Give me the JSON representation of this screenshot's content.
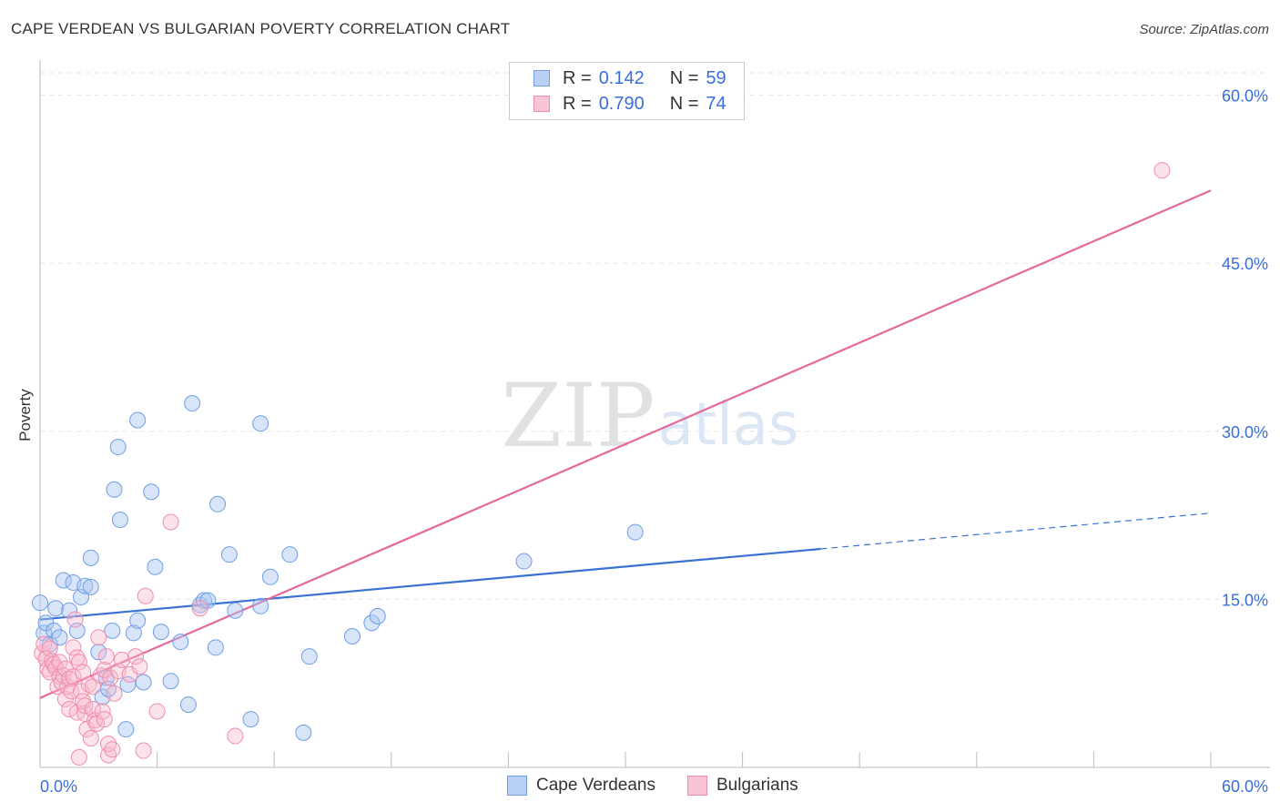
{
  "header": {
    "title": "CAPE VERDEAN VS BULGARIAN POVERTY CORRELATION CHART",
    "source": "Source: ZipAtlas.com"
  },
  "watermark": {
    "zip": "ZIP",
    "atlas": "atlas"
  },
  "legend": {
    "r_label": "R =",
    "n_label": "N =",
    "rows": [
      {
        "r": "0.142",
        "n": "59",
        "fill": "#b8d0f4",
        "stroke": "#6f9ee6"
      },
      {
        "r": "0.790",
        "n": "74",
        "fill": "#f9c4d5",
        "stroke": "#ee8eac"
      }
    ]
  },
  "bottom_legend": [
    {
      "label": "Cape Verdeans",
      "fill": "#b8d0f4",
      "stroke": "#6f9ee6"
    },
    {
      "label": "Bulgarians",
      "fill": "#f9c4d5",
      "stroke": "#ee8eac"
    }
  ],
  "chart_data": {
    "type": "scatter",
    "title": "CAPE VERDEAN VS BULGARIAN POVERTY CORRELATION CHART",
    "xlabel": "",
    "ylabel": "Poverty",
    "xlim": [
      0,
      60
    ],
    "ylim": [
      0,
      62
    ],
    "x_tick_labels": [
      "0.0%",
      "60.0%"
    ],
    "y_ticks": [
      15,
      30,
      45,
      60
    ],
    "y_tick_labels": [
      "15.0%",
      "30.0%",
      "45.0%",
      "60.0%"
    ],
    "grid": true,
    "colors": {
      "blue": "#3a72d4",
      "pink": "#e4689a",
      "tick_label": "#3a6fd8"
    },
    "series": [
      {
        "name": "Cape Verdeans",
        "r": 0.142,
        "n": 59,
        "trend": {
          "x0": 0,
          "y0": 13.2,
          "x1": 40,
          "y1": 19.5,
          "dash_x1": 60,
          "dash_y1": 22.7
        },
        "points": [
          [
            0,
            14.7
          ],
          [
            0.2,
            12.0
          ],
          [
            0.3,
            12.9
          ],
          [
            0.5,
            11.0
          ],
          [
            0.7,
            12.2
          ],
          [
            0.8,
            14.2
          ],
          [
            1.0,
            11.6
          ],
          [
            1.2,
            16.7
          ],
          [
            1.5,
            14.0
          ],
          [
            1.7,
            16.5
          ],
          [
            1.9,
            12.2
          ],
          [
            2.1,
            15.2
          ],
          [
            2.3,
            16.2
          ],
          [
            2.6,
            18.7
          ],
          [
            2.6,
            16.1
          ],
          [
            3.0,
            10.3
          ],
          [
            3.2,
            6.3
          ],
          [
            3.4,
            8.0
          ],
          [
            3.5,
            7.0
          ],
          [
            3.7,
            12.2
          ],
          [
            3.8,
            24.8
          ],
          [
            4.0,
            28.6
          ],
          [
            4.1,
            22.1
          ],
          [
            4.4,
            3.4
          ],
          [
            4.5,
            7.4
          ],
          [
            4.8,
            12.0
          ],
          [
            5.0,
            13.1
          ],
          [
            5.0,
            31.0
          ],
          [
            5.3,
            7.6
          ],
          [
            5.7,
            24.6
          ],
          [
            5.9,
            17.9
          ],
          [
            6.2,
            12.1
          ],
          [
            6.7,
            7.7
          ],
          [
            7.2,
            11.2
          ],
          [
            7.6,
            5.6
          ],
          [
            7.8,
            32.5
          ],
          [
            8.2,
            14.5
          ],
          [
            8.4,
            14.9
          ],
          [
            8.6,
            14.9
          ],
          [
            9.0,
            10.7
          ],
          [
            9.1,
            23.5
          ],
          [
            9.7,
            19.0
          ],
          [
            10.0,
            14.0
          ],
          [
            10.8,
            4.3
          ],
          [
            11.3,
            14.4
          ],
          [
            11.3,
            30.7
          ],
          [
            11.8,
            17.0
          ],
          [
            12.8,
            19.0
          ],
          [
            13.5,
            3.1
          ],
          [
            13.8,
            9.9
          ],
          [
            16.0,
            11.7
          ],
          [
            17.0,
            12.9
          ],
          [
            17.3,
            13.5
          ],
          [
            24.8,
            18.4
          ],
          [
            30.5,
            21.0
          ]
        ]
      },
      {
        "name": "Bulgarians",
        "r": 0.79,
        "n": 74,
        "trend": {
          "x0": 0,
          "y0": 6.2,
          "x1": 60,
          "y1": 51.5
        },
        "points": [
          [
            0.1,
            10.2
          ],
          [
            0.2,
            11.0
          ],
          [
            0.3,
            9.7
          ],
          [
            0.4,
            8.8
          ],
          [
            0.5,
            10.6
          ],
          [
            0.5,
            8.5
          ],
          [
            0.6,
            9.5
          ],
          [
            0.7,
            9.2
          ],
          [
            0.8,
            8.9
          ],
          [
            0.9,
            7.2
          ],
          [
            1.0,
            8.1
          ],
          [
            1.0,
            9.4
          ],
          [
            1.1,
            7.6
          ],
          [
            1.2,
            8.2
          ],
          [
            1.3,
            6.1
          ],
          [
            1.3,
            8.8
          ],
          [
            1.4,
            7.2
          ],
          [
            1.5,
            7.9
          ],
          [
            1.5,
            5.2
          ],
          [
            1.6,
            6.8
          ],
          [
            1.7,
            8.1
          ],
          [
            1.7,
            10.7
          ],
          [
            1.8,
            13.2
          ],
          [
            1.9,
            9.8
          ],
          [
            1.9,
            4.9
          ],
          [
            2.0,
            9.4
          ],
          [
            2.0,
            0.9
          ],
          [
            2.1,
            6.8
          ],
          [
            2.2,
            8.5
          ],
          [
            2.2,
            5.9
          ],
          [
            2.3,
            4.8
          ],
          [
            2.3,
            5.5
          ],
          [
            2.4,
            3.4
          ],
          [
            2.5,
            7.4
          ],
          [
            2.6,
            2.6
          ],
          [
            2.7,
            5.2
          ],
          [
            2.7,
            7.2
          ],
          [
            2.8,
            4.2
          ],
          [
            2.9,
            3.9
          ],
          [
            3.0,
            11.6
          ],
          [
            3.1,
            8.2
          ],
          [
            3.2,
            5.0
          ],
          [
            3.3,
            4.3
          ],
          [
            3.3,
            8.7
          ],
          [
            3.4,
            9.9
          ],
          [
            3.5,
            1.1
          ],
          [
            3.5,
            2.1
          ],
          [
            3.6,
            8.0
          ],
          [
            3.7,
            1.6
          ],
          [
            3.8,
            6.6
          ],
          [
            4.0,
            8.6
          ],
          [
            4.2,
            9.6
          ],
          [
            4.6,
            8.3
          ],
          [
            4.9,
            9.9
          ],
          [
            5.1,
            9.0
          ],
          [
            5.3,
            1.5
          ],
          [
            5.4,
            15.3
          ],
          [
            6.0,
            5.0
          ],
          [
            6.7,
            21.9
          ],
          [
            8.2,
            14.2
          ],
          [
            10.0,
            2.8
          ],
          [
            57.5,
            53.3
          ]
        ]
      }
    ]
  }
}
